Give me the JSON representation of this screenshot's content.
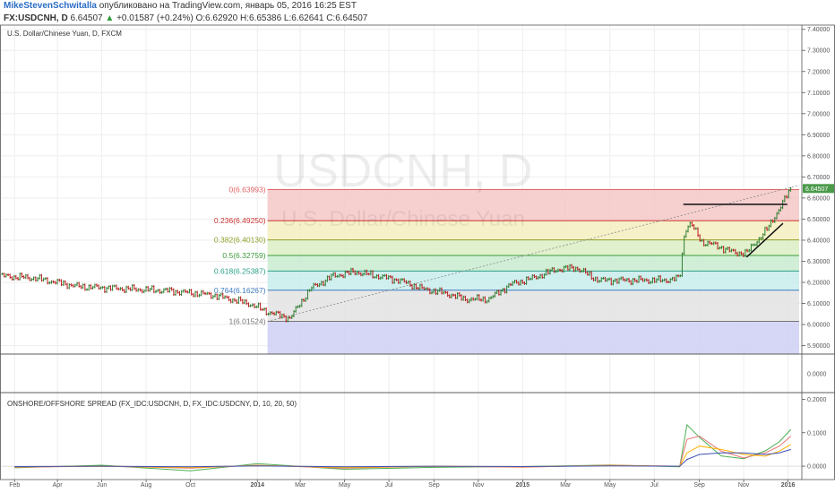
{
  "header": {
    "user": "MikeStevenSchwitalla",
    "published": "опубликовано на TradingView.com, январь 05, 2016 16:25 EST",
    "symbol": "FX:USDCNH, D",
    "last": "6.64507",
    "change": "+0.01587 (+0.24%)",
    "open": "O:6.62920",
    "high": "H:6.65386",
    "low": "L:6.62641",
    "close": "C:6.64507"
  },
  "main_pane": {
    "title": "U.S. Dollar/Chinese Yuan, D, FXCM",
    "watermark_symbol": "USDCNH, D",
    "watermark_name": "U.S. Dollar/Chinese Yuan",
    "price_ticks": [
      "7.40000",
      "7.30000",
      "7.20000",
      "7.10000",
      "7.00000",
      "6.90000",
      "6.80000",
      "6.70000",
      "6.60000",
      "6.50000",
      "6.40000",
      "6.30000",
      "6.20000",
      "6.10000",
      "6.00000",
      "5.90000"
    ],
    "last_price_tag": "6.64507",
    "last_price_color": "#4a9a4a"
  },
  "middle_pane": {
    "tick": "0.0000"
  },
  "indicator_pane": {
    "title": "ONSHORE/OFFSHORE SPREAD (FX_IDC:USDCNH, D, FX_IDC:USDCNY, D, 10, 20, 50)",
    "ticks": [
      "0.2000",
      "0.1000",
      "0.0000"
    ]
  },
  "time_axis": [
    "Feb",
    "Apr",
    "Jun",
    "Aug",
    "Oct",
    "2014",
    "Mar",
    "May",
    "Jul",
    "Sep",
    "Nov",
    "2015",
    "Mar",
    "May",
    "Jul",
    "Sep",
    "Nov",
    "2016"
  ],
  "colors": {
    "up_bar": "#2e7d32",
    "down_bar": "#b71c1c",
    "fib_border": "#555555"
  },
  "chart_data": [
    {
      "type": "line",
      "title": "U.S. Dollar/Chinese Yuan, D, FXCM",
      "x": [
        "2013-01-15",
        "2013-03-01",
        "2013-05-01",
        "2013-07-01",
        "2013-09-01",
        "2013-11-01",
        "2013-12-20",
        "2014-01-15",
        "2014-02-15",
        "2014-03-15",
        "2014-04-15",
        "2014-05-15",
        "2014-06-15",
        "2014-07-15",
        "2014-08-15",
        "2014-09-15",
        "2014-10-15",
        "2014-11-15",
        "2014-12-15",
        "2015-01-15",
        "2015-02-15",
        "2015-03-15",
        "2015-04-15",
        "2015-05-15",
        "2015-06-15",
        "2015-07-15",
        "2015-08-05",
        "2015-08-12",
        "2015-08-20",
        "2015-09-05",
        "2015-09-20",
        "2015-10-05",
        "2015-10-20",
        "2015-11-05",
        "2015-11-20",
        "2015-12-05",
        "2015-12-20",
        "2016-01-05"
      ],
      "series": [
        {
          "values": [
            6.23,
            6.22,
            6.18,
            6.17,
            6.16,
            6.14,
            6.1,
            6.06,
            6.03,
            6.17,
            6.23,
            6.25,
            6.23,
            6.21,
            6.17,
            6.15,
            6.12,
            6.12,
            6.19,
            6.22,
            6.26,
            6.27,
            6.21,
            6.21,
            6.21,
            6.21,
            6.22,
            6.45,
            6.48,
            6.39,
            6.38,
            6.36,
            6.34,
            6.34,
            6.4,
            6.46,
            6.55,
            6.645
          ]
        }
      ],
      "fibonacci": [
        {
          "label": "0(6.63993)",
          "value": 6.63993,
          "color": "#e06666"
        },
        {
          "label": "0.236(6.49250)",
          "value": 6.4925,
          "color": "#cc3333"
        },
        {
          "label": "0.382(6.40130)",
          "value": 6.4013,
          "color": "#8da02a"
        },
        {
          "label": "0.5(6.32759)",
          "value": 6.32759,
          "color": "#3b9c3b"
        },
        {
          "label": "0.618(6.25387)",
          "value": 6.25387,
          "color": "#2aa08a"
        },
        {
          "label": "0.764(6.16267)",
          "value": 6.16267,
          "color": "#3c78c0"
        },
        {
          "label": "1(6.01524)",
          "value": 6.01524,
          "color": "#777777"
        }
      ],
      "ylim": [
        5.86,
        7.42
      ]
    },
    {
      "type": "line",
      "title": "ONSHORE/OFFSHORE SPREAD (FX_IDC:USDCNH, D, FX_IDC:USDCNY, D, 10, 20, 50)",
      "x": [
        "2013-02-01",
        "2013-06-01",
        "2013-10-01",
        "2014-01-01",
        "2014-05-01",
        "2014-09-01",
        "2015-01-01",
        "2015-05-01",
        "2015-08-05",
        "2015-08-15",
        "2015-09-01",
        "2015-10-01",
        "2015-11-01",
        "2015-12-01",
        "2015-12-20",
        "2016-01-05"
      ],
      "series": [
        {
          "values": [
            -0.005,
            0.0,
            -0.01,
            0.005,
            -0.01,
            0.0,
            -0.005,
            0.005,
            0.0,
            0.12,
            0.09,
            0.03,
            0.02,
            0.05,
            0.07,
            0.11
          ]
        },
        {
          "values": [
            -0.003,
            0.0,
            -0.006,
            0.003,
            -0.006,
            0.0,
            -0.003,
            0.003,
            0.0,
            0.08,
            0.09,
            0.045,
            0.025,
            0.04,
            0.06,
            0.09
          ]
        },
        {
          "values": [
            -0.002,
            0.0,
            -0.004,
            0.002,
            -0.004,
            0.0,
            -0.002,
            0.002,
            0.0,
            0.04,
            0.06,
            0.05,
            0.035,
            0.03,
            0.045,
            0.065
          ]
        },
        {
          "values": [
            -0.001,
            0.0,
            -0.002,
            0.001,
            -0.002,
            0.0,
            -0.001,
            0.001,
            0.0,
            0.02,
            0.035,
            0.04,
            0.04,
            0.035,
            0.04,
            0.05
          ]
        }
      ],
      "ylim": [
        -0.04,
        0.22
      ]
    }
  ]
}
